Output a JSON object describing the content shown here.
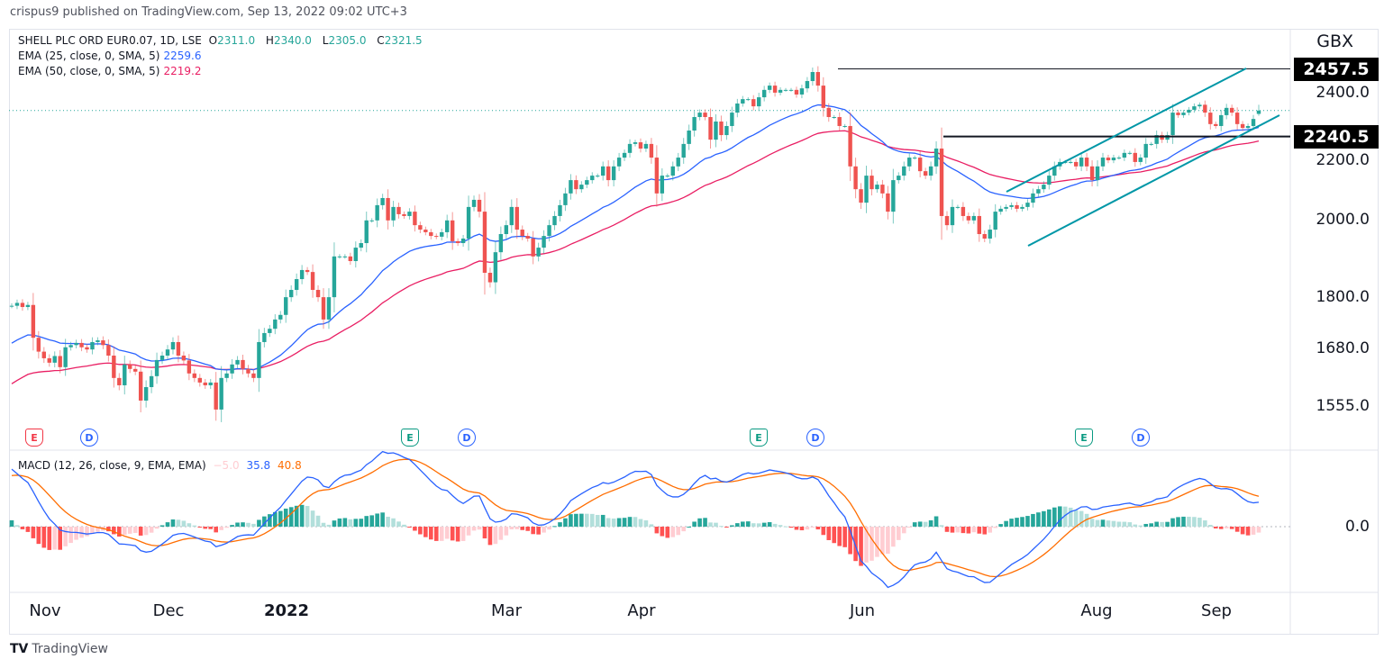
{
  "published": "crispus9 published on TradingView.com, Sep 13, 2022 09:02 UTC+3",
  "legend": {
    "symbol": "SHELL PLC ORD EUR0.07, 1D, LSE",
    "o_label": "O",
    "o": "2311.0",
    "h_label": "H",
    "h": "2340.0",
    "l_label": "L",
    "l": "2305.0",
    "c_label": "C",
    "c": "2321.5",
    "ema25_label": "EMA (25, close, 0, SMA, 5)",
    "ema25": "2259.6",
    "ema50_label": "EMA (50, close, 0, SMA, 5)",
    "ema50": "2219.2",
    "macd_label": "MACD (12, 26, close, 9, EMA, EMA)",
    "macd_hist": "−5.0",
    "macd": "35.8",
    "macd_signal": "40.8"
  },
  "colors": {
    "up": "#26a69a",
    "down": "#ef5350",
    "ema25": "#2962ff",
    "ema50": "#e91e63",
    "macd": "#2962ff",
    "signal": "#ff6d00",
    "channel": "#0097a7"
  },
  "chart_data": {
    "type": "candlestick",
    "currency": "GBX",
    "y_scale": "log",
    "y_ticks": [
      "2400.0",
      "2200.0",
      "2000.0",
      "1800.0",
      "1680.0",
      "1555.0"
    ],
    "x_ticks": [
      "Nov",
      "Dec",
      "2022",
      "Mar",
      "Apr",
      "Jun",
      "Aug",
      "Sep"
    ],
    "price_tags": [
      "2457.5",
      "2240.5"
    ],
    "horizontal_levels": [
      2457.5,
      2240.5
    ],
    "last_candle": {
      "open": 2311.0,
      "high": 2340.0,
      "low": 2305.0,
      "close": 2321.5
    },
    "close": [
      1778,
      1785,
      1775,
      1780,
      1702,
      1670,
      1655,
      1645,
      1660,
      1635,
      1680,
      1685,
      1690,
      1680,
      1675,
      1692,
      1696,
      1685,
      1661,
      1611,
      1595,
      1641,
      1631,
      1625,
      1562,
      1591,
      1615,
      1651,
      1661,
      1675,
      1692,
      1661,
      1650,
      1621,
      1611,
      1601,
      1595,
      1601,
      1543,
      1611,
      1621,
      1641,
      1651,
      1631,
      1621,
      1611,
      1692,
      1713,
      1723,
      1745,
      1756,
      1799,
      1817,
      1844,
      1867,
      1862,
      1817,
      1799,
      1745,
      1799,
      1902,
      1902,
      1902,
      1890,
      1925,
      1937,
      1998,
      1998,
      2040,
      2060,
      1998,
      2035,
      2015,
      2010,
      2022,
      1985,
      1973,
      1966,
      1956,
      1954,
      1966,
      1998,
      1942,
      1937,
      1949,
      2035,
      2055,
      2022,
      1860,
      1836,
      1913,
      1961,
      1985,
      2035,
      1973,
      1956,
      1949,
      1902,
      1925,
      1956,
      1985,
      2010,
      2040,
      2073,
      2111,
      2085,
      2098,
      2111,
      2124,
      2124,
      2151,
      2111,
      2151,
      2177,
      2191,
      2218,
      2223,
      2204,
      2218,
      2177,
      2073,
      2124,
      2124,
      2151,
      2177,
      2218,
      2259,
      2301,
      2315,
      2301,
      2231,
      2287,
      2245,
      2273,
      2315,
      2344,
      2358,
      2358,
      2335,
      2364,
      2388,
      2402,
      2379,
      2388,
      2388,
      2388,
      2373,
      2393,
      2417,
      2447,
      2402,
      2330,
      2301,
      2301,
      2273,
      2273,
      2151,
      2085,
      2047,
      2124,
      2085,
      2098,
      2073,
      2022,
      2111,
      2124,
      2151,
      2177,
      2177,
      2137,
      2124,
      2151,
      2204,
      2010,
      1985,
      2035,
      2035,
      2010,
      1998,
      2010,
      1961,
      1949,
      1973,
      2022,
      2030,
      2035,
      2040,
      2030,
      2035,
      2047,
      2073,
      2085,
      2098,
      2124,
      2151,
      2164,
      2164,
      2164,
      2151,
      2177,
      2151,
      2111,
      2151,
      2177,
      2169,
      2177,
      2177,
      2191,
      2191,
      2164,
      2177,
      2218,
      2218,
      2245,
      2231,
      2245,
      2315,
      2307,
      2315,
      2324,
      2335,
      2340,
      2315,
      2279,
      2273,
      2307,
      2330,
      2315,
      2279,
      2267,
      2273,
      2295,
      2321.5
    ],
    "macd_zero_label": "0.0",
    "events": [
      {
        "type": "E",
        "color": "#f23645"
      },
      {
        "type": "D"
      },
      {
        "type": "E",
        "color": "#089981"
      },
      {
        "type": "D"
      },
      {
        "type": "E",
        "color": "#089981"
      },
      {
        "type": "D"
      },
      {
        "type": "E",
        "color": "#089981"
      },
      {
        "type": "D"
      }
    ]
  },
  "footer": {
    "brand": "TradingView"
  }
}
